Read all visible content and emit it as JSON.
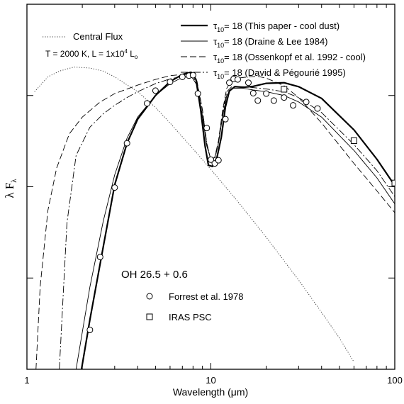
{
  "chart_data": {
    "type": "line",
    "xlabel": "Wavelength (μm)",
    "ylabel_main": "λ F",
    "ylabel_sub": "λ",
    "xscale": "log",
    "yscale": "log",
    "xlim": [
      1,
      100
    ],
    "ylim": [
      0.0001,
      1
    ],
    "x_ticks": [
      1,
      10,
      100
    ],
    "x_tick_labels": [
      "1",
      "10",
      "100"
    ],
    "y_tick_labels_shown": false,
    "grid": false,
    "legend_position": "top-right",
    "annotations": {
      "object_name": "OH 26.5 + 0.6",
      "central_flux_label": "Central Flux",
      "params_text": "T = 2000 K,  L = 1x10",
      "params_exp": "4",
      "params_tail": " L",
      "params_sub": "o"
    },
    "legend_entries": [
      {
        "style": "thick-solid",
        "tau": "τ",
        "tau_sub": "10",
        "text": "= 18 (This paper - cool dust)"
      },
      {
        "style": "thin-solid",
        "tau": "τ",
        "tau_sub": "10",
        "text": "= 18 (Draine & Lee 1984)"
      },
      {
        "style": "dashed",
        "tau": "τ",
        "tau_sub": "10",
        "text": "= 18 (Ossenkopf et al. 1992 - cool)"
      },
      {
        "style": "dash-dot",
        "tau": "τ",
        "tau_sub": "10",
        "text": "= 18 (David & Pégourié 1995)"
      }
    ],
    "marker_legend": [
      {
        "marker": "circle",
        "label": "Forrest et al. 1978"
      },
      {
        "marker": "square",
        "label": "IRAS PSC"
      }
    ],
    "series": [
      {
        "name": "Central Flux",
        "style": "dotted",
        "x": [
          1.1,
          1.3,
          1.5,
          1.8,
          2.2,
          2.6,
          3,
          4,
          5,
          6,
          8,
          10,
          14,
          20,
          30,
          40,
          50,
          60
        ],
        "y": [
          0.11,
          0.16,
          0.185,
          0.205,
          0.2,
          0.185,
          0.16,
          0.11,
          0.074,
          0.05,
          0.026,
          0.0155,
          0.0069,
          0.0028,
          0.00095,
          0.00042,
          0.00022,
          0.00012
        ]
      },
      {
        "name": "τ10= 18 (This paper - cool dust)",
        "style": "thick-solid",
        "x": [
          1.98,
          2.2,
          2.6,
          3,
          3.5,
          4,
          5,
          6,
          7,
          7.8,
          8.3,
          8.8,
          9.3,
          9.7,
          10.2,
          10.8,
          11.4,
          12,
          12.6,
          13.5,
          15,
          17,
          20,
          25,
          30,
          40,
          60,
          80,
          100
        ],
        "y": [
          0.0001,
          0.00035,
          0.0022,
          0.0105,
          0.03,
          0.055,
          0.1,
          0.142,
          0.17,
          0.18,
          0.15,
          0.07,
          0.028,
          0.0172,
          0.0167,
          0.021,
          0.035,
          0.075,
          0.112,
          0.125,
          0.123,
          0.126,
          0.136,
          0.138,
          0.125,
          0.093,
          0.042,
          0.02,
          0.0103
        ]
      },
      {
        "name": "τ10= 18 (Draine & Lee 1984)",
        "style": "thin-solid",
        "x": [
          1.85,
          2.2,
          2.6,
          3,
          3.5,
          4,
          5,
          6,
          7,
          7.8,
          8.4,
          9,
          9.5,
          10,
          10.5,
          11,
          11.6,
          12.2,
          13,
          15,
          17,
          20,
          25,
          30,
          40,
          60,
          80,
          100
        ],
        "y": [
          0.0001,
          0.0008,
          0.0042,
          0.0135,
          0.034,
          0.058,
          0.1,
          0.135,
          0.158,
          0.165,
          0.13,
          0.06,
          0.028,
          0.02,
          0.021,
          0.03,
          0.06,
          0.1,
          0.12,
          0.12,
          0.115,
          0.11,
          0.1,
          0.085,
          0.058,
          0.025,
          0.0125,
          0.0065
        ]
      },
      {
        "name": "τ10= 18 (Ossenkopf et al. 1992 - cool)",
        "style": "dashed",
        "x": [
          1.12,
          1.18,
          1.3,
          1.45,
          1.7,
          2,
          2.5,
          3,
          4,
          5,
          6,
          7,
          7.8,
          8.4,
          9,
          9.5,
          10,
          10.5,
          11,
          11.6,
          12.2,
          13,
          14,
          16,
          18,
          20,
          25,
          30,
          40,
          60,
          80,
          100
        ],
        "y": [
          0.0001,
          0.0008,
          0.0055,
          0.016,
          0.038,
          0.058,
          0.085,
          0.105,
          0.13,
          0.15,
          0.165,
          0.17,
          0.17,
          0.145,
          0.07,
          0.03,
          0.0195,
          0.021,
          0.032,
          0.07,
          0.12,
          0.148,
          0.155,
          0.16,
          0.162,
          0.155,
          0.128,
          0.095,
          0.05,
          0.018,
          0.009,
          0.0052
        ]
      },
      {
        "name": "τ10= 18 (David & Pégourié 1995)",
        "style": "dash-dot",
        "x": [
          1.5,
          1.65,
          1.85,
          2.2,
          2.6,
          3,
          3.5,
          4,
          5,
          6,
          7,
          7.8,
          8.4,
          9,
          9.5,
          10,
          10.5,
          11,
          11.6,
          12.2,
          13,
          15,
          17,
          20,
          25,
          30,
          40,
          60,
          80,
          100
        ],
        "y": [
          0.0001,
          0.004,
          0.022,
          0.045,
          0.063,
          0.078,
          0.095,
          0.11,
          0.135,
          0.152,
          0.162,
          0.165,
          0.14,
          0.068,
          0.03,
          0.0195,
          0.02,
          0.03,
          0.065,
          0.11,
          0.125,
          0.125,
          0.122,
          0.118,
          0.11,
          0.095,
          0.065,
          0.029,
          0.015,
          0.0078
        ]
      },
      {
        "name": "Forrest et al. 1978",
        "style": "circle",
        "x": [
          2.2,
          2.5,
          3,
          3.5,
          4.5,
          5,
          6,
          7,
          7.6,
          8,
          8.5,
          9.5,
          10,
          10.5,
          11,
          12,
          12.6,
          13.3,
          14,
          16,
          17,
          18,
          20,
          22,
          25,
          28,
          33,
          38
        ],
        "y": [
          0.00027,
          0.0017,
          0.0098,
          0.03,
          0.082,
          0.113,
          0.141,
          0.16,
          0.165,
          0.167,
          0.105,
          0.044,
          0.0198,
          0.018,
          0.0195,
          0.055,
          0.138,
          0.152,
          0.15,
          0.138,
          0.106,
          0.088,
          0.105,
          0.088,
          0.095,
          0.078,
          0.085,
          0.072
        ]
      },
      {
        "name": "IRAS PSC",
        "style": "square",
        "x": [
          25,
          60,
          100
        ],
        "y": [
          0.117,
          0.032,
          0.011
        ]
      }
    ]
  }
}
